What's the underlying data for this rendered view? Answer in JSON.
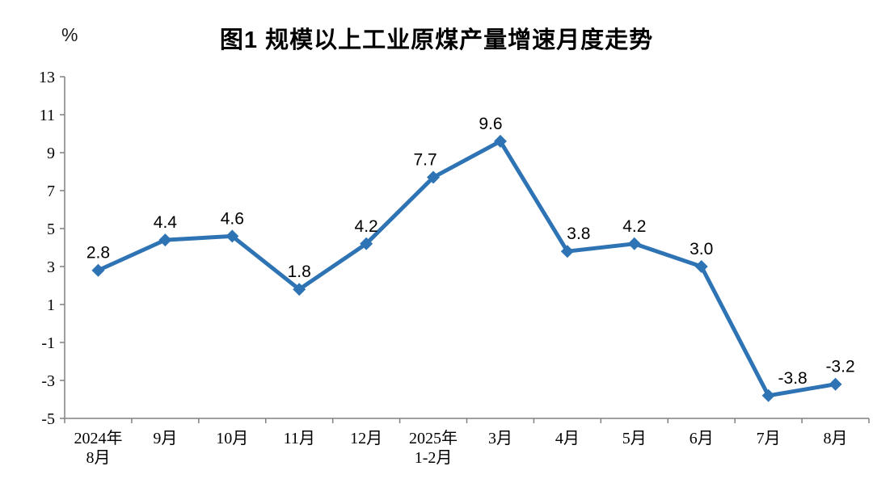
{
  "chart_data": {
    "type": "line",
    "title": "图1 规模以上工业原煤产量增速月度走势",
    "ylabel": "%",
    "xlabel": "",
    "categories": [
      "2024年8月",
      "9月",
      "10月",
      "11月",
      "12月",
      "2025年1-2月",
      "3月",
      "4月",
      "5月",
      "6月",
      "7月",
      "8月"
    ],
    "x_tick_lines": [
      [
        "2024年",
        "8月"
      ],
      [
        "9月"
      ],
      [
        "10月"
      ],
      [
        "11月"
      ],
      [
        "12月"
      ],
      [
        "2025年",
        "1-2月"
      ],
      [
        "3月"
      ],
      [
        "4月"
      ],
      [
        "5月"
      ],
      [
        "6月"
      ],
      [
        "7月"
      ],
      [
        "8月"
      ]
    ],
    "series": [
      {
        "name": "规模以上工业原煤产量增速",
        "values": [
          2.8,
          4.4,
          4.6,
          1.8,
          4.2,
          7.7,
          9.6,
          3.8,
          4.2,
          3.0,
          -3.8,
          -3.2
        ],
        "data_labels": [
          "2.8",
          "4.4",
          "4.6",
          "1.8",
          "4.2",
          "7.7",
          "9.6",
          "3.8",
          "4.2",
          "3.0",
          "-3.8",
          "-3.2"
        ]
      }
    ],
    "ylim": [
      -5,
      13
    ],
    "yticks": [
      13,
      11,
      9,
      7,
      5,
      3,
      1,
      -1,
      -3,
      -5
    ],
    "grid": false,
    "legend_position": "none",
    "marker": "diamond",
    "line_color": "#2E74B5",
    "axis_color": "#808080",
    "text_color": "#000000"
  }
}
